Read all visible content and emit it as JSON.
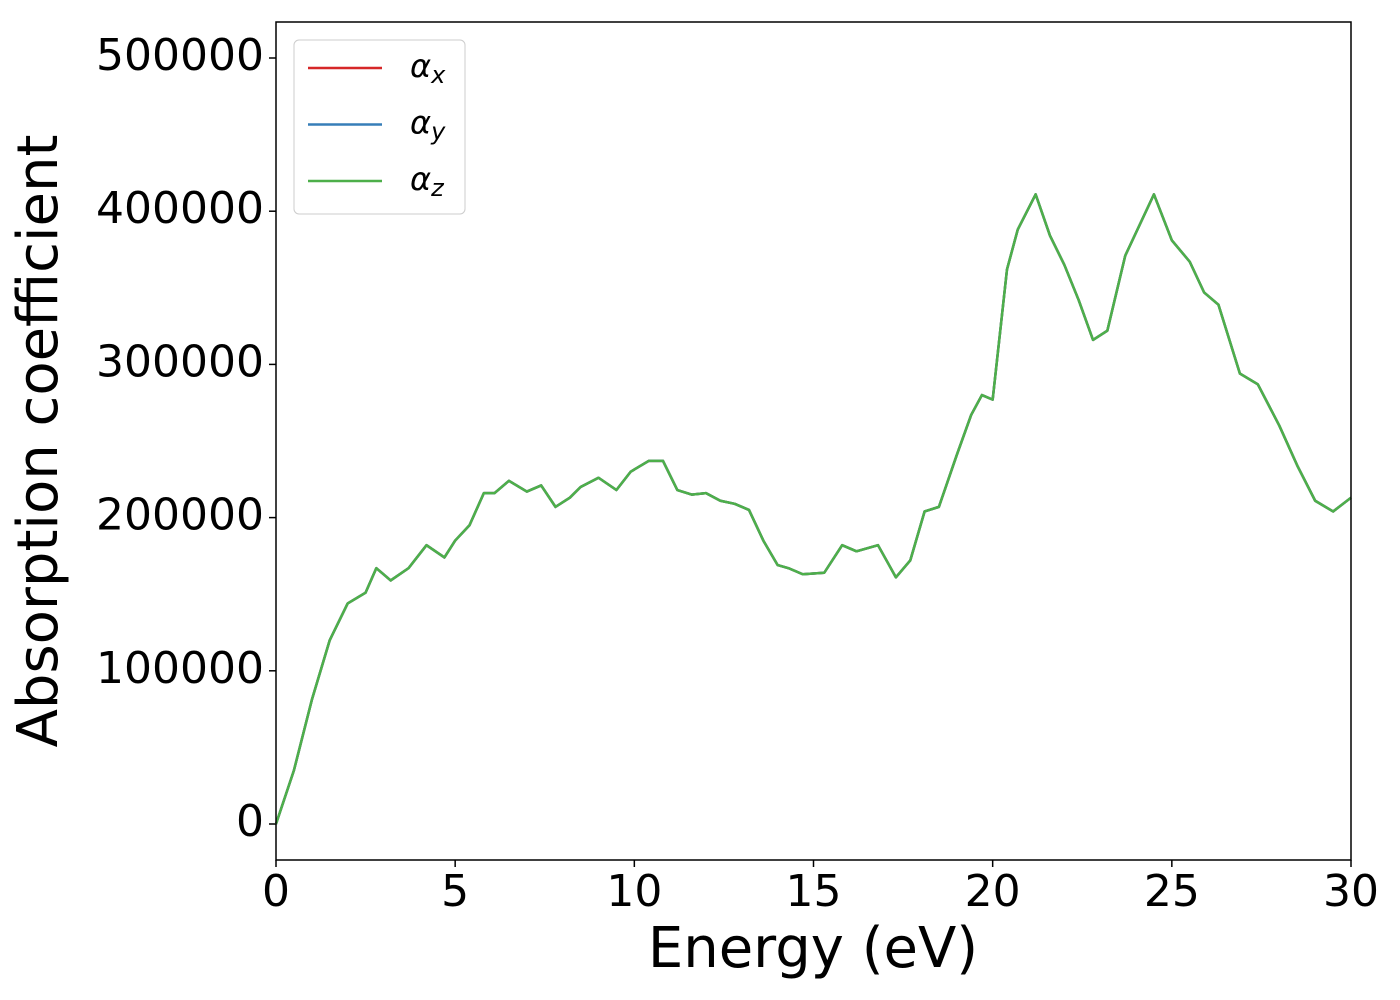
{
  "chart_data": {
    "type": "line",
    "x_label": "Energy (eV)",
    "y_label": "Absorption coefficient",
    "x": [
      0,
      0.5,
      1.0,
      1.5,
      2.0,
      2.5,
      2.8,
      3.2,
      3.7,
      4.2,
      4.7,
      5.0,
      5.4,
      5.8,
      6.1,
      6.5,
      7.0,
      7.4,
      7.8,
      8.2,
      8.5,
      9.0,
      9.5,
      9.9,
      10.4,
      10.8,
      11.2,
      11.6,
      12.0,
      12.4,
      12.8,
      13.2,
      13.6,
      14.0,
      14.3,
      14.7,
      15.3,
      15.8,
      16.2,
      16.8,
      17.3,
      17.7,
      18.1,
      18.5,
      19.0,
      19.4,
      19.7,
      20.0,
      20.4,
      20.7,
      21.2,
      21.6,
      22.0,
      22.4,
      22.8,
      23.2,
      23.7,
      24.1,
      24.5,
      25.0,
      25.5,
      25.9,
      26.3,
      26.9,
      27.4,
      28.0,
      28.5,
      29.0,
      29.5,
      30.0
    ],
    "series": [
      {
        "name": "αx",
        "color": "#d62728",
        "values": [
          0,
          35000,
          81000,
          120000,
          144000,
          151000,
          167000,
          159000,
          167000,
          182000,
          174000,
          185000,
          195000,
          216000,
          216000,
          224000,
          217000,
          221000,
          207000,
          213000,
          220000,
          226000,
          218000,
          230000,
          237000,
          237000,
          218000,
          215000,
          216000,
          211000,
          209000,
          205000,
          185000,
          169000,
          167000,
          163000,
          164000,
          182000,
          178000,
          182000,
          161000,
          172000,
          204000,
          207000,
          241000,
          267000,
          280000,
          277000,
          362000,
          388000,
          411000,
          384000,
          365000,
          342000,
          316000,
          322000,
          371000,
          391000,
          411000,
          381000,
          367000,
          347000,
          339000,
          294000,
          287000,
          260000,
          234000,
          211000,
          204000,
          213000
        ]
      },
      {
        "name": "αy",
        "color": "#377eb8",
        "values": [
          0,
          35000,
          81000,
          120000,
          144000,
          151000,
          167000,
          159000,
          167000,
          182000,
          174000,
          185000,
          195000,
          216000,
          216000,
          224000,
          217000,
          221000,
          207000,
          213000,
          220000,
          226000,
          218000,
          230000,
          237000,
          237000,
          218000,
          215000,
          216000,
          211000,
          209000,
          205000,
          185000,
          169000,
          167000,
          163000,
          164000,
          182000,
          178000,
          182000,
          161000,
          172000,
          204000,
          207000,
          241000,
          267000,
          280000,
          277000,
          362000,
          388000,
          411000,
          384000,
          365000,
          342000,
          316000,
          322000,
          371000,
          391000,
          411000,
          381000,
          367000,
          347000,
          339000,
          294000,
          287000,
          260000,
          234000,
          211000,
          204000,
          213000
        ]
      },
      {
        "name": "αz",
        "color": "#4daf4a",
        "values": [
          0,
          35000,
          81000,
          120000,
          144000,
          151000,
          167000,
          159000,
          167000,
          182000,
          174000,
          185000,
          195000,
          216000,
          216000,
          224000,
          217000,
          221000,
          207000,
          213000,
          220000,
          226000,
          218000,
          230000,
          237000,
          237000,
          218000,
          215000,
          216000,
          211000,
          209000,
          205000,
          185000,
          169000,
          167000,
          163000,
          164000,
          182000,
          178000,
          182000,
          161000,
          172000,
          204000,
          207000,
          241000,
          267000,
          280000,
          277000,
          362000,
          388000,
          411000,
          384000,
          365000,
          342000,
          316000,
          322000,
          371000,
          391000,
          411000,
          381000,
          367000,
          347000,
          339000,
          294000,
          287000,
          260000,
          234000,
          211000,
          204000,
          213000
        ]
      }
    ],
    "xlim": [
      0,
      30
    ],
    "xticks": [
      0,
      5,
      10,
      15,
      20,
      25,
      30
    ],
    "ylim": [
      -23500,
      523500
    ],
    "yticks": [
      0,
      100000,
      200000,
      300000,
      400000,
      500000
    ],
    "grid": false,
    "legend": "upper left"
  }
}
